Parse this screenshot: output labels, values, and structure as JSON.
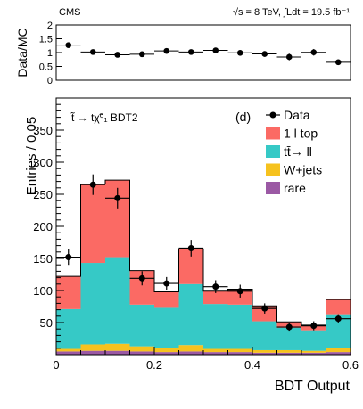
{
  "header": {
    "experiment": "CMS",
    "energy_label": "√s = 8 TeV, ∫Ldt = 19.5 fb⁻¹"
  },
  "chart_data": [
    {
      "type": "scatter",
      "panel": "ratio",
      "ylabel": "Data/MC",
      "ylim": [
        0,
        2
      ],
      "y_ticks": [
        0,
        0.5,
        1,
        1.5,
        2
      ],
      "xlim": [
        0,
        0.6
      ],
      "bin_edges": [
        0,
        0.05,
        0.1,
        0.15,
        0.2,
        0.25,
        0.3,
        0.35,
        0.4,
        0.45,
        0.5,
        0.55,
        0.6
      ],
      "values": [
        1.27,
        1.02,
        0.92,
        0.94,
        1.06,
        1.02,
        1.08,
        0.99,
        0.95,
        0.84,
        1.01,
        0.65
      ],
      "errors": [
        0.1,
        0.05,
        0.05,
        0.08,
        0.09,
        0.07,
        0.07,
        0.08,
        0.1,
        0.12,
        0.12,
        0.09
      ]
    },
    {
      "type": "bar",
      "stacked": true,
      "panel": "main",
      "label": "t̃ → tχ̃⁰₁  BDT2",
      "panel_tag": "(d)",
      "xlabel": "BDT Output",
      "ylabel": "Entries / 0.05",
      "xlim": [
        0,
        0.6
      ],
      "ylim": [
        0,
        400
      ],
      "x_ticks": [
        0,
        0.2,
        0.4,
        0.6
      ],
      "x_tick_labels": [
        "0",
        "0.2",
        "0.4",
        "0.6"
      ],
      "y_ticks": [
        50,
        100,
        150,
        200,
        250,
        300,
        350
      ],
      "bin_edges": [
        0,
        0.05,
        0.1,
        0.15,
        0.2,
        0.25,
        0.3,
        0.35,
        0.4,
        0.45,
        0.5,
        0.55,
        0.6
      ],
      "cut_line_x": 0.55,
      "series": [
        {
          "name": "rare",
          "color": "#9b59a4",
          "values": [
            5,
            6,
            6,
            5,
            4,
            5,
            4,
            4,
            3,
            3,
            3,
            4
          ]
        },
        {
          "name": "W+jets",
          "color": "#f6c21e",
          "values": [
            4,
            10,
            11,
            8,
            7,
            10,
            5,
            5,
            4,
            4,
            3,
            7
          ]
        },
        {
          "name": "tt̄→ ll",
          "color": "#36c9c6",
          "values": [
            62,
            127,
            135,
            65,
            62,
            95,
            70,
            69,
            45,
            35,
            32,
            52
          ]
        },
        {
          "name": "1 l top",
          "color": "#fb6a64",
          "values": [
            51,
            123,
            120,
            53,
            25,
            55,
            20,
            24,
            24,
            9,
            8,
            23
          ]
        }
      ],
      "data": {
        "name": "Data",
        "values": [
          152,
          265,
          244,
          119,
          111,
          166,
          106,
          99,
          72,
          43,
          45,
          56
        ],
        "errors": [
          12,
          16,
          16,
          11,
          10,
          13,
          10,
          10,
          8,
          7,
          7,
          7
        ]
      }
    }
  ]
}
